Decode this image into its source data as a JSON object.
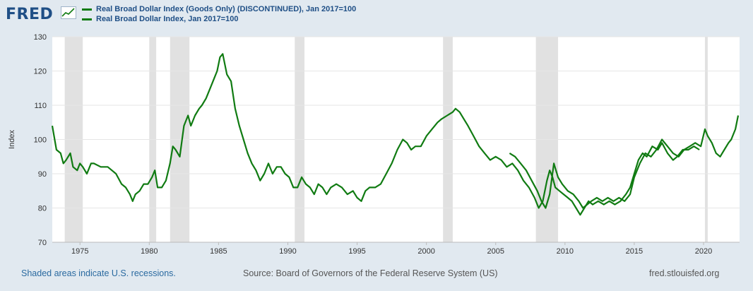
{
  "header": {
    "logo_text": "FRED",
    "logo_icon": "chart-line-icon"
  },
  "legend": [
    {
      "label": "Real Broad Dollar Index (Goods Only) (DISCONTINUED), Jan 2017=100",
      "color": "#107b12"
    },
    {
      "label": "Real Broad Dollar Index, Jan 2017=100",
      "color": "#107b12"
    }
  ],
  "footer": {
    "left": "Shaded areas indicate U.S. recessions.",
    "source": "Source: Board of Governors of the Federal Reserve System (US)",
    "site": "fred.stlouisfed.org"
  },
  "colors": {
    "background": "#e1e9f0",
    "plot_background": "#ffffff",
    "recession": "#e1e1e1",
    "line": "#107b12",
    "text": "#1f4f86"
  },
  "chart_data": {
    "type": "line",
    "ylabel": "Index",
    "ylim": [
      70,
      130
    ],
    "xlim": [
      1973.0,
      2022.6
    ],
    "yticks": [
      70,
      80,
      90,
      100,
      110,
      120,
      130
    ],
    "xticks": [
      1975,
      1980,
      1985,
      1990,
      1995,
      2000,
      2005,
      2010,
      2015,
      2020
    ],
    "grid": true,
    "legend_position": "top-left",
    "recessions": [
      [
        1973.9,
        1975.2
      ],
      [
        1980.0,
        1980.5
      ],
      [
        1981.5,
        1982.9
      ],
      [
        1990.5,
        1991.2
      ],
      [
        2001.2,
        2001.9
      ],
      [
        2007.9,
        2009.5
      ],
      [
        2020.1,
        2020.3
      ]
    ],
    "series": [
      {
        "name": "Real Broad Dollar Index (Goods Only) (DISCONTINUED), Jan 2017=100",
        "x": [
          1973.0,
          1973.3,
          1973.6,
          1973.8,
          1974.0,
          1974.3,
          1974.5,
          1974.8,
          1975.0,
          1975.2,
          1975.5,
          1975.8,
          1976.0,
          1976.5,
          1977.0,
          1977.3,
          1977.6,
          1978.0,
          1978.3,
          1978.6,
          1978.8,
          1979.0,
          1979.3,
          1979.6,
          1979.9,
          1980.2,
          1980.4,
          1980.6,
          1980.9,
          1981.2,
          1981.5,
          1981.7,
          1981.9,
          1982.2,
          1982.5,
          1982.8,
          1983.0,
          1983.3,
          1983.6,
          1983.8,
          1984.1,
          1984.4,
          1984.7,
          1984.9,
          1985.1,
          1985.3,
          1985.6,
          1985.9,
          1986.2,
          1986.5,
          1986.8,
          1987.1,
          1987.4,
          1987.7,
          1988.0,
          1988.3,
          1988.6,
          1988.9,
          1989.2,
          1989.5,
          1989.8,
          1990.1,
          1990.4,
          1990.7,
          1991.0,
          1991.3,
          1991.6,
          1991.9,
          1992.2,
          1992.5,
          1992.8,
          1993.1,
          1993.5,
          1993.9,
          1994.3,
          1994.7,
          1995.0,
          1995.3,
          1995.6,
          1995.9,
          1996.3,
          1996.7,
          1997.1,
          1997.5,
          1997.9,
          1998.3,
          1998.6,
          1998.9,
          1999.2,
          1999.6,
          2000.0,
          2000.4,
          2000.8,
          2001.1,
          2001.5,
          2001.9,
          2002.1,
          2002.4,
          2002.7,
          2003.0,
          2003.4,
          2003.8,
          2004.2,
          2004.6,
          2005.0,
          2005.4,
          2005.8,
          2006.2,
          2006.6,
          2007.0,
          2007.4,
          2007.8,
          2008.1,
          2008.4,
          2008.7,
          2008.9,
          2009.1,
          2009.3,
          2009.6,
          2009.9,
          2010.2,
          2010.5,
          2010.8,
          2011.1,
          2011.4,
          2011.7,
          2012.0,
          2012.4,
          2012.8,
          2013.2,
          2013.6,
          2014.0,
          2014.4,
          2014.7,
          2015.0,
          2015.3,
          2015.6,
          2015.9,
          2016.3,
          2016.7,
          2017.0,
          2017.4,
          2017.8,
          2018.1,
          2018.5,
          2018.9,
          2019.3,
          2019.7
        ],
        "y": [
          104,
          97,
          96,
          93,
          94,
          96,
          92,
          91,
          93,
          92,
          90,
          93,
          93,
          92,
          92,
          91,
          90,
          87,
          86,
          84,
          82,
          84,
          85,
          87,
          87,
          89,
          91,
          86,
          86,
          88,
          93,
          98,
          97,
          95,
          104,
          107,
          104,
          107,
          109,
          110,
          112,
          115,
          118,
          120,
          124,
          125,
          119,
          117,
          109,
          104,
          100,
          96,
          93,
          91,
          88,
          90,
          93,
          90,
          92,
          92,
          90,
          89,
          86,
          86,
          89,
          87,
          86,
          84,
          87,
          86,
          84,
          86,
          87,
          86,
          84,
          85,
          83,
          82,
          85,
          86,
          86,
          87,
          90,
          93,
          97,
          100,
          99,
          97,
          98,
          98,
          101,
          103,
          105,
          106,
          107,
          108,
          109,
          108,
          106,
          104,
          101,
          98,
          96,
          94,
          95,
          94,
          92,
          93,
          91,
          88,
          86,
          83,
          80,
          82,
          88,
          91,
          89,
          86,
          85,
          84,
          83,
          82,
          80,
          78,
          80,
          82,
          81,
          82,
          81,
          82,
          81,
          82,
          84,
          86,
          90,
          94,
          96,
          95,
          98,
          97,
          99,
          96,
          94,
          95,
          97,
          97,
          98,
          97
        ]
      },
      {
        "name": "Real Broad Dollar Index, Jan 2017=100",
        "x": [
          2006.0,
          2006.4,
          2006.8,
          2007.2,
          2007.6,
          2008.0,
          2008.3,
          2008.6,
          2008.9,
          2009.2,
          2009.5,
          2009.8,
          2010.2,
          2010.6,
          2011.0,
          2011.3,
          2011.6,
          2011.9,
          2012.3,
          2012.7,
          2013.1,
          2013.5,
          2013.9,
          2014.3,
          2014.7,
          2015.0,
          2015.4,
          2015.8,
          2016.2,
          2016.6,
          2017.0,
          2017.4,
          2017.8,
          2018.2,
          2018.6,
          2019.0,
          2019.4,
          2019.8,
          2020.1,
          2020.3,
          2020.6,
          2020.9,
          2021.2,
          2021.5,
          2021.8,
          2022.0,
          2022.3,
          2022.5
        ],
        "y": [
          96,
          95,
          93,
          91,
          88,
          85,
          82,
          80,
          84,
          93,
          89,
          87,
          85,
          84,
          82,
          80,
          81,
          82,
          83,
          82,
          83,
          82,
          83,
          82,
          84,
          89,
          93,
          96,
          95,
          97,
          100,
          98,
          96,
          95,
          97,
          98,
          99,
          98,
          103,
          101,
          99,
          96,
          95,
          97,
          99,
          100,
          103,
          107
        ]
      }
    ]
  }
}
